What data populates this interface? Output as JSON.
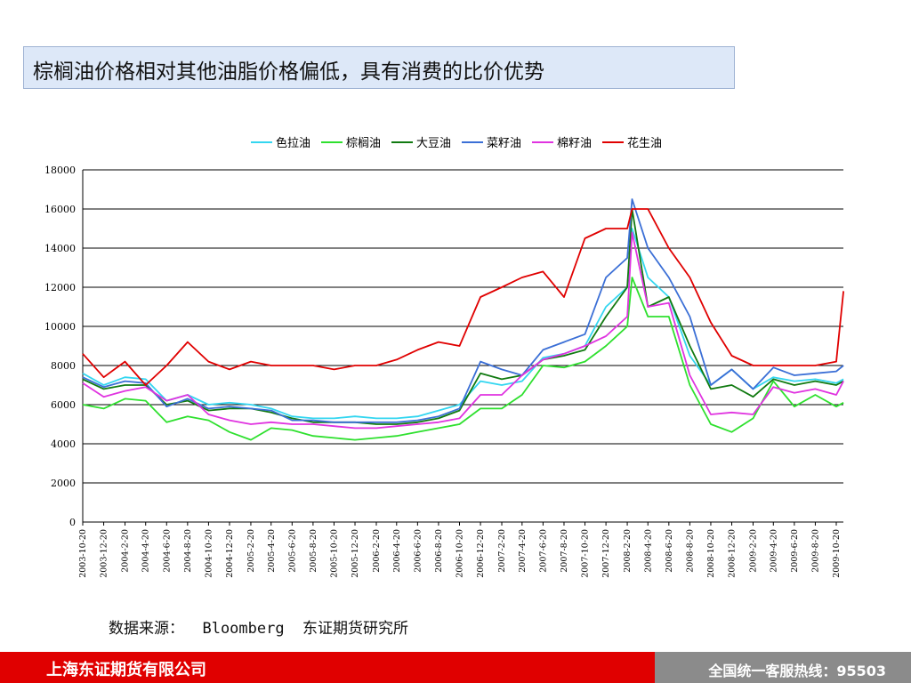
{
  "title": "棕榈油价格相对其他油脂价格偏低，具有消费的比价优势",
  "source": "数据来源：  Bloomberg  东证期货研究所",
  "footer": {
    "company": "上海东证期货有限公司",
    "hotline": "全国统一客服热线：95503"
  },
  "chart_data": {
    "type": "line",
    "ylim": [
      0,
      18000
    ],
    "yticks": [
      0,
      2000,
      4000,
      6000,
      8000,
      10000,
      12000,
      14000,
      16000,
      18000
    ],
    "xtick_labels": [
      "2003-10-20",
      "2003-12-20",
      "2004-2-20",
      "2004-4-20",
      "2004-6-20",
      "2004-8-20",
      "2004-10-20",
      "2004-12-20",
      "2005-2-20",
      "2005-4-20",
      "2005-6-20",
      "2005-8-20",
      "2005-10-20",
      "2005-12-20",
      "2006-2-20",
      "2006-4-20",
      "2006-6-20",
      "2006-8-20",
      "2006-10-20",
      "2006-12-20",
      "2007-2-20",
      "2007-4-20",
      "2007-6-20",
      "2007-8-20",
      "2007-10-20",
      "2007-12-20",
      "2008-2-20",
      "2008-4-20",
      "2008-6-20",
      "2008-8-20",
      "2008-10-20",
      "2008-12-20",
      "2009-2-20",
      "2009-4-20",
      "2009-6-20",
      "2009-8-20",
      "2009-10-20"
    ],
    "grid": "horizontal",
    "legend_position": "top",
    "series": [
      {
        "name": "色拉油",
        "color": "#33d6f0",
        "points": [
          [
            "2003-10-20",
            7600
          ],
          [
            "2003-12-20",
            7000
          ],
          [
            "2004-2-20",
            7400
          ],
          [
            "2004-4-20",
            7300
          ],
          [
            "2004-6-20",
            6200
          ],
          [
            "2004-8-20",
            6500
          ],
          [
            "2004-10-20",
            6000
          ],
          [
            "2004-12-20",
            6100
          ],
          [
            "2005-2-20",
            6000
          ],
          [
            "2005-4-20",
            5800
          ],
          [
            "2005-6-20",
            5400
          ],
          [
            "2005-8-20",
            5300
          ],
          [
            "2005-10-20",
            5300
          ],
          [
            "2005-12-20",
            5400
          ],
          [
            "2006-2-20",
            5300
          ],
          [
            "2006-4-20",
            5300
          ],
          [
            "2006-6-20",
            5400
          ],
          [
            "2006-8-20",
            5700
          ],
          [
            "2006-10-20",
            6000
          ],
          [
            "2006-12-20",
            7200
          ],
          [
            "2007-2-20",
            7000
          ],
          [
            "2007-4-20",
            7200
          ],
          [
            "2007-6-20",
            8400
          ],
          [
            "2007-8-20",
            8600
          ],
          [
            "2007-10-20",
            9000
          ],
          [
            "2007-12-20",
            11000
          ],
          [
            "2008-2-20",
            12000
          ],
          [
            "2008-3-5",
            15000
          ],
          [
            "2008-4-20",
            12500
          ],
          [
            "2008-6-20",
            11500
          ],
          [
            "2008-8-20",
            8500
          ],
          [
            "2008-10-20",
            7000
          ],
          [
            "2008-12-20",
            7800
          ],
          [
            "2009-2-20",
            6800
          ],
          [
            "2009-4-20",
            7400
          ],
          [
            "2009-6-20",
            7200
          ],
          [
            "2009-8-20",
            7300
          ],
          [
            "2009-10-20",
            7100
          ],
          [
            "2009-11-10",
            7300
          ]
        ]
      },
      {
        "name": "棕榈油",
        "color": "#2ee02e",
        "points": [
          [
            "2003-10-20",
            6000
          ],
          [
            "2003-12-20",
            5800
          ],
          [
            "2004-2-20",
            6300
          ],
          [
            "2004-4-20",
            6200
          ],
          [
            "2004-6-20",
            5100
          ],
          [
            "2004-8-20",
            5400
          ],
          [
            "2004-10-20",
            5200
          ],
          [
            "2004-12-20",
            4600
          ],
          [
            "2005-2-20",
            4200
          ],
          [
            "2005-4-20",
            4800
          ],
          [
            "2005-6-20",
            4700
          ],
          [
            "2005-8-20",
            4400
          ],
          [
            "2005-10-20",
            4300
          ],
          [
            "2005-12-20",
            4200
          ],
          [
            "2006-2-20",
            4300
          ],
          [
            "2006-4-20",
            4400
          ],
          [
            "2006-6-20",
            4600
          ],
          [
            "2006-8-20",
            4800
          ],
          [
            "2006-10-20",
            5000
          ],
          [
            "2006-12-20",
            5800
          ],
          [
            "2007-2-20",
            5800
          ],
          [
            "2007-4-20",
            6500
          ],
          [
            "2007-6-20",
            8000
          ],
          [
            "2007-8-20",
            7900
          ],
          [
            "2007-10-20",
            8200
          ],
          [
            "2007-12-20",
            9000
          ],
          [
            "2008-2-20",
            10000
          ],
          [
            "2008-3-5",
            12500
          ],
          [
            "2008-4-20",
            10500
          ],
          [
            "2008-6-20",
            10500
          ],
          [
            "2008-8-20",
            7000
          ],
          [
            "2008-10-20",
            5000
          ],
          [
            "2008-12-20",
            4600
          ],
          [
            "2009-2-20",
            5300
          ],
          [
            "2009-4-20",
            7200
          ],
          [
            "2009-6-20",
            5900
          ],
          [
            "2009-8-20",
            6500
          ],
          [
            "2009-10-20",
            5900
          ],
          [
            "2009-11-10",
            6100
          ]
        ]
      },
      {
        "name": "大豆油",
        "color": "#117a11",
        "points": [
          [
            "2003-10-20",
            7300
          ],
          [
            "2003-12-20",
            6800
          ],
          [
            "2004-2-20",
            7000
          ],
          [
            "2004-4-20",
            7000
          ],
          [
            "2004-6-20",
            6000
          ],
          [
            "2004-8-20",
            6200
          ],
          [
            "2004-10-20",
            5700
          ],
          [
            "2004-12-20",
            5800
          ],
          [
            "2005-2-20",
            5800
          ],
          [
            "2005-4-20",
            5600
          ],
          [
            "2005-6-20",
            5300
          ],
          [
            "2005-8-20",
            5100
          ],
          [
            "2005-10-20",
            5100
          ],
          [
            "2005-12-20",
            5100
          ],
          [
            "2006-2-20",
            5000
          ],
          [
            "2006-4-20",
            5000
          ],
          [
            "2006-6-20",
            5100
          ],
          [
            "2006-8-20",
            5300
          ],
          [
            "2006-10-20",
            5700
          ],
          [
            "2006-12-20",
            7600
          ],
          [
            "2007-2-20",
            7300
          ],
          [
            "2007-4-20",
            7500
          ],
          [
            "2007-6-20",
            8300
          ],
          [
            "2007-8-20",
            8500
          ],
          [
            "2007-10-20",
            8800
          ],
          [
            "2007-12-20",
            10500
          ],
          [
            "2008-2-20",
            12000
          ],
          [
            "2008-3-5",
            16000
          ],
          [
            "2008-4-20",
            11000
          ],
          [
            "2008-6-20",
            11500
          ],
          [
            "2008-8-20",
            9000
          ],
          [
            "2008-10-20",
            6800
          ],
          [
            "2008-12-20",
            7000
          ],
          [
            "2009-2-20",
            6400
          ],
          [
            "2009-4-20",
            7300
          ],
          [
            "2009-6-20",
            7000
          ],
          [
            "2009-8-20",
            7200
          ],
          [
            "2009-10-20",
            7000
          ],
          [
            "2009-11-10",
            7200
          ]
        ]
      },
      {
        "name": "菜籽油",
        "color": "#3b6fd6",
        "points": [
          [
            "2003-10-20",
            7400
          ],
          [
            "2003-12-20",
            6900
          ],
          [
            "2004-2-20",
            7200
          ],
          [
            "2004-4-20",
            7100
          ],
          [
            "2004-6-20",
            5900
          ],
          [
            "2004-8-20",
            6300
          ],
          [
            "2004-10-20",
            5800
          ],
          [
            "2004-12-20",
            5900
          ],
          [
            "2005-2-20",
            5800
          ],
          [
            "2005-4-20",
            5700
          ],
          [
            "2005-6-20",
            5200
          ],
          [
            "2005-8-20",
            5200
          ],
          [
            "2005-10-20",
            5100
          ],
          [
            "2005-12-20",
            5100
          ],
          [
            "2006-2-20",
            5100
          ],
          [
            "2006-4-20",
            5100
          ],
          [
            "2006-6-20",
            5200
          ],
          [
            "2006-8-20",
            5400
          ],
          [
            "2006-10-20",
            5800
          ],
          [
            "2006-12-20",
            8200
          ],
          [
            "2007-2-20",
            7800
          ],
          [
            "2007-4-20",
            7500
          ],
          [
            "2007-6-20",
            8800
          ],
          [
            "2007-8-20",
            9200
          ],
          [
            "2007-10-20",
            9600
          ],
          [
            "2007-12-20",
            12500
          ],
          [
            "2008-2-20",
            13500
          ],
          [
            "2008-3-5",
            16500
          ],
          [
            "2008-4-20",
            14000
          ],
          [
            "2008-6-20",
            12500
          ],
          [
            "2008-8-20",
            10500
          ],
          [
            "2008-10-20",
            7000
          ],
          [
            "2008-12-20",
            7800
          ],
          [
            "2009-2-20",
            6800
          ],
          [
            "2009-4-20",
            7900
          ],
          [
            "2009-6-20",
            7500
          ],
          [
            "2009-8-20",
            7600
          ],
          [
            "2009-10-20",
            7700
          ],
          [
            "2009-11-10",
            8000
          ]
        ]
      },
      {
        "name": "棉籽油",
        "color": "#e033e0",
        "points": [
          [
            "2003-10-20",
            7100
          ],
          [
            "2003-12-20",
            6400
          ],
          [
            "2004-2-20",
            6700
          ],
          [
            "2004-4-20",
            6900
          ],
          [
            "2004-6-20",
            6200
          ],
          [
            "2004-8-20",
            6500
          ],
          [
            "2004-10-20",
            5500
          ],
          [
            "2004-12-20",
            5200
          ],
          [
            "2005-2-20",
            5000
          ],
          [
            "2005-4-20",
            5100
          ],
          [
            "2005-6-20",
            5000
          ],
          [
            "2005-8-20",
            5000
          ],
          [
            "2005-10-20",
            4900
          ],
          [
            "2005-12-20",
            4800
          ],
          [
            "2006-2-20",
            4800
          ],
          [
            "2006-4-20",
            4900
          ],
          [
            "2006-6-20",
            5000
          ],
          [
            "2006-8-20",
            5100
          ],
          [
            "2006-10-20",
            5300
          ],
          [
            "2006-12-20",
            6500
          ],
          [
            "2007-2-20",
            6500
          ],
          [
            "2007-4-20",
            7500
          ],
          [
            "2007-6-20",
            8300
          ],
          [
            "2007-8-20",
            8600
          ],
          [
            "2007-10-20",
            9000
          ],
          [
            "2007-12-20",
            9500
          ],
          [
            "2008-2-20",
            10500
          ],
          [
            "2008-3-5",
            14800
          ],
          [
            "2008-4-20",
            11000
          ],
          [
            "2008-6-20",
            11200
          ],
          [
            "2008-8-20",
            7500
          ],
          [
            "2008-10-20",
            5500
          ],
          [
            "2008-12-20",
            5600
          ],
          [
            "2009-2-20",
            5500
          ],
          [
            "2009-4-20",
            6900
          ],
          [
            "2009-6-20",
            6600
          ],
          [
            "2009-8-20",
            6800
          ],
          [
            "2009-10-20",
            6500
          ],
          [
            "2009-11-10",
            7200
          ]
        ]
      },
      {
        "name": "花生油",
        "color": "#e00000",
        "points": [
          [
            "2003-10-20",
            8600
          ],
          [
            "2003-12-20",
            7400
          ],
          [
            "2004-2-20",
            8200
          ],
          [
            "2004-4-20",
            7000
          ],
          [
            "2004-6-20",
            8000
          ],
          [
            "2004-8-20",
            9200
          ],
          [
            "2004-10-20",
            8200
          ],
          [
            "2004-12-20",
            7800
          ],
          [
            "2005-2-20",
            8200
          ],
          [
            "2005-4-20",
            8000
          ],
          [
            "2005-6-20",
            8000
          ],
          [
            "2005-8-20",
            8000
          ],
          [
            "2005-10-20",
            7800
          ],
          [
            "2005-12-20",
            8000
          ],
          [
            "2006-2-20",
            8000
          ],
          [
            "2006-4-20",
            8300
          ],
          [
            "2006-6-20",
            8800
          ],
          [
            "2006-8-20",
            9200
          ],
          [
            "2006-10-20",
            9000
          ],
          [
            "2006-12-20",
            11500
          ],
          [
            "2007-2-20",
            12000
          ],
          [
            "2007-4-20",
            12500
          ],
          [
            "2007-6-20",
            12800
          ],
          [
            "2007-8-20",
            11500
          ],
          [
            "2007-10-20",
            14500
          ],
          [
            "2007-12-20",
            15000
          ],
          [
            "2008-2-20",
            15000
          ],
          [
            "2008-3-5",
            16000
          ],
          [
            "2008-4-20",
            16000
          ],
          [
            "2008-6-20",
            14000
          ],
          [
            "2008-8-20",
            12500
          ],
          [
            "2008-10-20",
            10200
          ],
          [
            "2008-12-20",
            8500
          ],
          [
            "2009-2-20",
            8000
          ],
          [
            "2009-4-20",
            8000
          ],
          [
            "2009-6-20",
            8000
          ],
          [
            "2009-8-20",
            8000
          ],
          [
            "2009-10-20",
            8200
          ],
          [
            "2009-11-10",
            11800
          ]
        ]
      }
    ]
  }
}
